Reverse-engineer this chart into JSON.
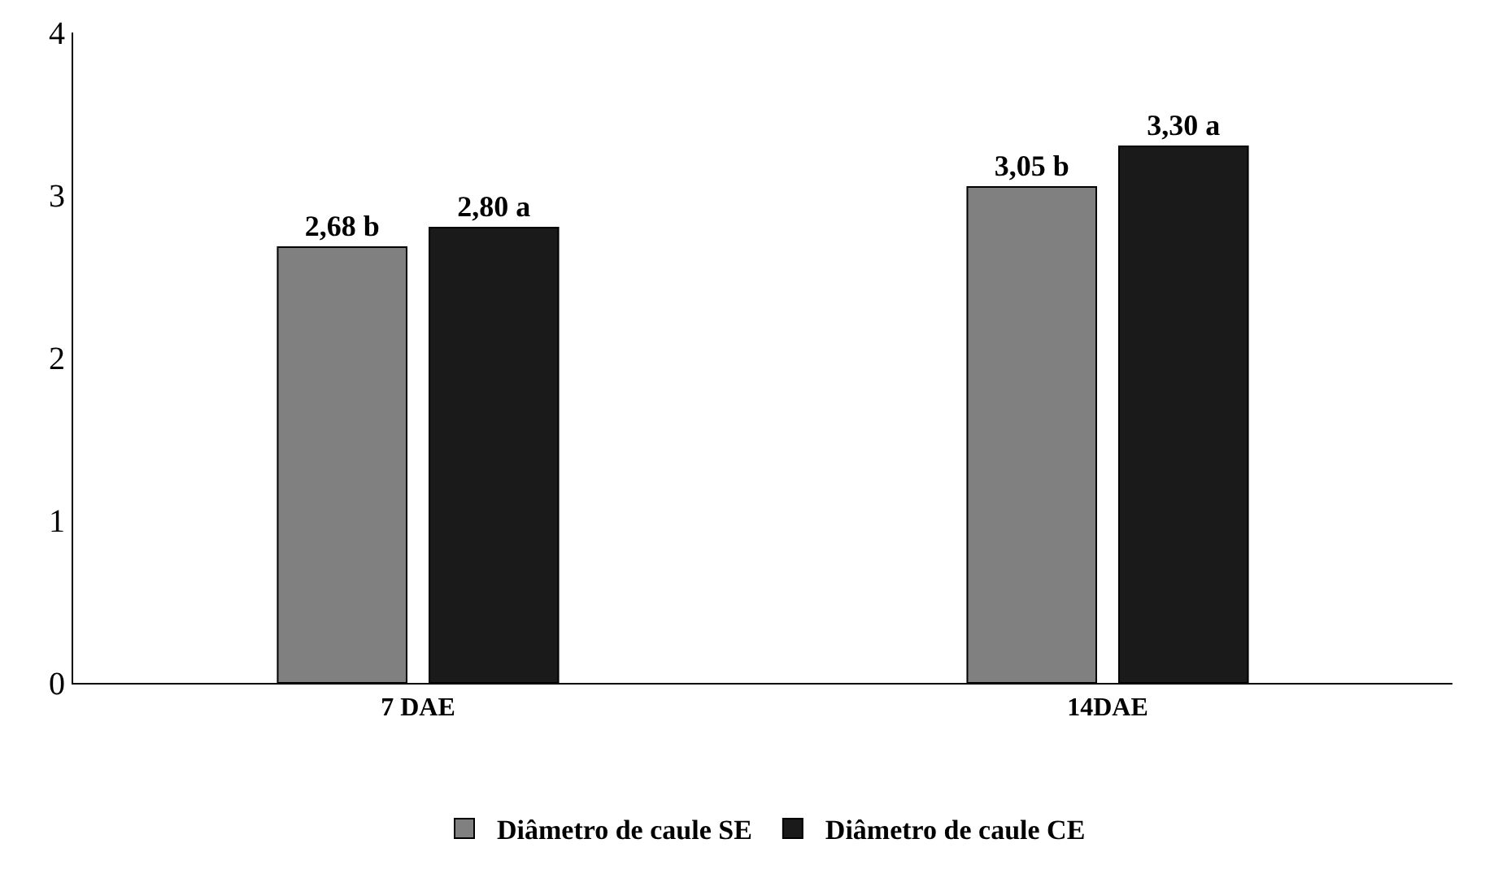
{
  "chart_data": {
    "type": "bar",
    "categories": [
      "7 DAE",
      "14DAE"
    ],
    "series": [
      {
        "name": "Diâmetro de caule SE",
        "color": "#808080",
        "values": [
          2.68,
          3.05
        ],
        "value_labels": [
          "2,68 b",
          "3,05 b"
        ]
      },
      {
        "name": "Diâmetro de caule CE",
        "color": "#1a1a1a",
        "values": [
          2.8,
          3.3
        ],
        "value_labels": [
          "2,80 a",
          "3,30 a"
        ]
      }
    ],
    "ylim": [
      0,
      4
    ],
    "yticks": [
      0,
      1,
      2,
      3,
      4
    ],
    "grid": false,
    "legend": "bottom"
  }
}
